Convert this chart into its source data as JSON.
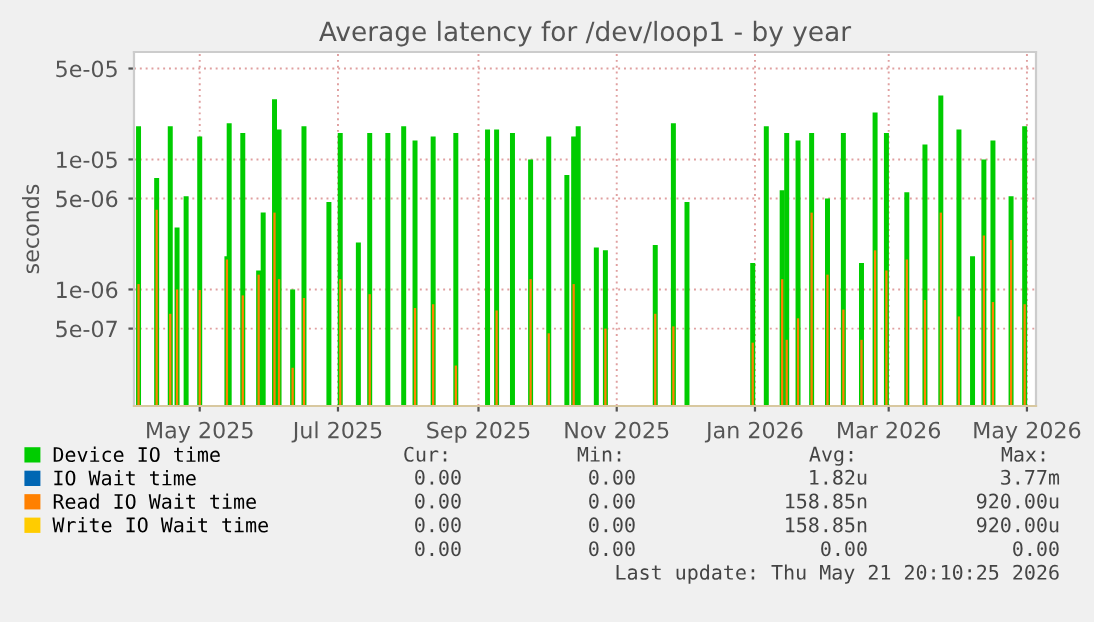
{
  "chart_data": {
    "type": "bar",
    "title": "Average latency for /dev/loop1 - by year",
    "ylabel": "seconds",
    "log": "y",
    "ylim": [
      1.27e-07,
      6.7e-05
    ],
    "yticks": [
      {
        "value": 5e-07,
        "label": "5e-07"
      },
      {
        "value": 1e-06,
        "label": "1e-06"
      },
      {
        "value": 5e-06,
        "label": "5e-06"
      },
      {
        "value": 1e-05,
        "label": "1e-05"
      },
      {
        "value": 5e-05,
        "label": "5e-05"
      }
    ],
    "xlim": [
      "2025-04-02",
      "2026-05-05"
    ],
    "xticks": [
      {
        "value": "2025-05-01",
        "label": "May 2025"
      },
      {
        "value": "2025-07-01",
        "label": "Jul 2025"
      },
      {
        "value": "2025-09-01",
        "label": "Sep 2025"
      },
      {
        "value": "2025-11-01",
        "label": "Nov 2025"
      },
      {
        "value": "2026-01-01",
        "label": "Jan 2026"
      },
      {
        "value": "2026-03-01",
        "label": "Mar 2026"
      },
      {
        "value": "2026-05-01",
        "label": "May 2026"
      }
    ],
    "x": [
      "2025-04-04",
      "2025-04-12",
      "2025-04-18",
      "2025-04-21",
      "2025-04-25",
      "2025-05-01",
      "2025-05-13",
      "2025-05-14",
      "2025-05-20",
      "2025-05-27",
      "2025-05-29",
      "2025-06-03",
      "2025-06-05",
      "2025-06-11",
      "2025-06-16",
      "2025-06-27",
      "2025-07-02",
      "2025-07-10",
      "2025-07-15",
      "2025-07-23",
      "2025-07-30",
      "2025-08-04",
      "2025-08-12",
      "2025-08-22",
      "2025-09-05",
      "2025-09-09",
      "2025-09-16",
      "2025-09-24",
      "2025-10-02",
      "2025-10-10",
      "2025-10-13",
      "2025-10-15",
      "2025-10-23",
      "2025-10-27",
      "2025-11-18",
      "2025-11-26",
      "2025-12-02",
      "2025-12-31",
      "2026-01-06",
      "2026-01-13",
      "2026-01-15",
      "2026-01-20",
      "2026-01-26",
      "2026-02-02",
      "2026-02-09",
      "2026-02-17",
      "2026-02-23",
      "2026-02-28",
      "2026-03-09",
      "2026-03-17",
      "2026-03-24",
      "2026-04-01",
      "2026-04-07",
      "2026-04-12",
      "2026-04-16",
      "2026-04-24",
      "2026-04-30"
    ],
    "series": [
      {
        "name": "Device IO time",
        "color": "#00cc00",
        "values": [
          1.8e-05,
          7.2e-06,
          1.8e-05,
          3e-06,
          5.2e-06,
          1.5e-05,
          1.8e-06,
          1.9e-05,
          1.6e-05,
          1.4e-06,
          3.9e-06,
          2.9e-05,
          1.7e-05,
          1e-06,
          1.8e-05,
          4.7e-06,
          1.6e-05,
          2.3e-06,
          1.6e-05,
          1.6e-05,
          1.8e-05,
          1.4e-05,
          1.5e-05,
          1.6e-05,
          1.7e-05,
          1.7e-05,
          1.6e-05,
          1e-05,
          1.5e-05,
          7.6e-06,
          1.5e-05,
          1.8e-05,
          2.1e-06,
          2e-06,
          2.2e-06,
          1.9e-05,
          4.7e-06,
          1.6e-06,
          1.8e-05,
          5.8e-06,
          1.6e-05,
          1.4e-05,
          1.6e-05,
          5e-06,
          1.6e-05,
          1.6e-06,
          2.3e-05,
          1.6e-05,
          5.6e-06,
          1.3e-05,
          3.1e-05,
          1.7e-05,
          1.8e-06,
          1e-05,
          1.4e-05,
          5.2e-06,
          1.8e-05
        ]
      },
      {
        "name": "IO Wait time",
        "color": "#0066b3",
        "values": [
          null,
          null,
          null,
          null,
          null,
          null,
          null,
          null,
          null,
          null,
          null,
          null,
          null,
          null,
          null,
          null,
          null,
          null,
          null,
          null,
          null,
          null,
          null,
          null,
          null,
          null,
          null,
          null,
          null,
          null,
          null,
          null,
          null,
          null,
          null,
          null,
          null,
          null,
          null,
          null,
          null,
          null,
          null,
          null,
          null,
          null,
          null,
          null,
          null,
          null,
          null,
          null,
          null,
          null,
          null,
          null,
          null
        ]
      },
      {
        "name": "Read IO Wait time",
        "color": "#ff8000",
        "values": [
          1.1e-06,
          4.1e-06,
          6.5e-07,
          1e-06,
          null,
          9.9e-07,
          1.7e-06,
          null,
          9e-07,
          1.3e-06,
          null,
          3.9e-06,
          1.2e-06,
          2.5e-07,
          8.6e-07,
          null,
          1.2e-06,
          null,
          9.2e-07,
          null,
          null,
          7.2e-07,
          7.7e-07,
          2.6e-07,
          null,
          6.9e-07,
          null,
          1.2e-06,
          4.6e-07,
          null,
          1.1e-06,
          null,
          null,
          5e-07,
          6.5e-07,
          5.2e-07,
          null,
          3.9e-07,
          null,
          1.2e-06,
          4.1e-07,
          6e-07,
          3.9e-06,
          1.3e-06,
          7e-07,
          4.1e-07,
          2e-06,
          1.4e-06,
          1.7e-06,
          8.3e-07,
          3.9e-06,
          6.2e-07,
          null,
          2.6e-06,
          8e-07,
          2.4e-06,
          7.7e-07
        ]
      },
      {
        "name": "Write IO Wait time",
        "color": "#ffcc00",
        "values": [
          null,
          null,
          null,
          null,
          null,
          null,
          null,
          null,
          null,
          null,
          null,
          null,
          null,
          null,
          null,
          null,
          null,
          null,
          null,
          null,
          null,
          null,
          null,
          null,
          null,
          null,
          null,
          null,
          null,
          null,
          null,
          null,
          null,
          null,
          null,
          null,
          null,
          null,
          null,
          null,
          null,
          null,
          null,
          null,
          null,
          null,
          null,
          null,
          null,
          null,
          null,
          null,
          null,
          null,
          null,
          null,
          null
        ]
      }
    ],
    "grid": true,
    "legend": "bottom",
    "annotations": [
      "Cur:",
      "Min:",
      "Avg:",
      "Max:",
      "0.00",
      "0.00",
      "1.82u",
      "3.77m",
      "0.00",
      "0.00",
      "158.85n",
      "920.00u",
      "0.00",
      "0.00",
      "158.85n",
      "920.00u",
      "0.00",
      "0.00",
      "0.00",
      "0.00",
      "Last update: Thu May 21 20:10:25 2026"
    ]
  }
}
